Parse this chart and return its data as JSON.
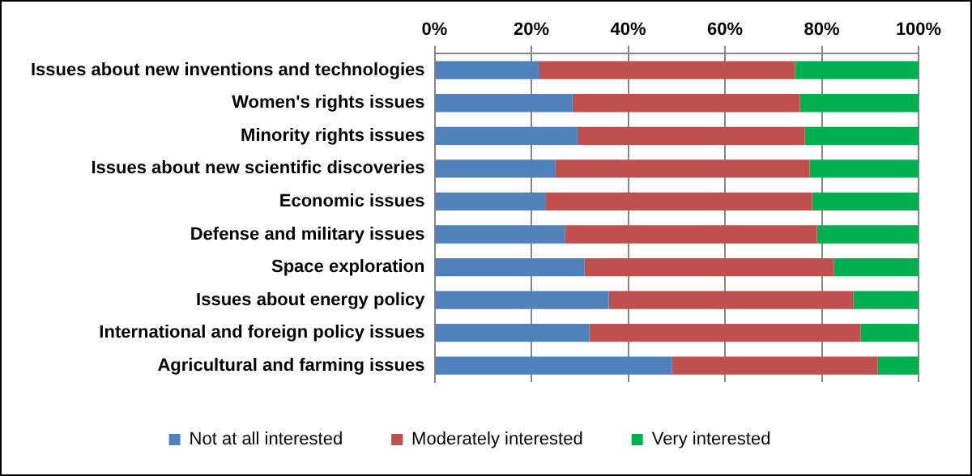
{
  "chart_data": {
    "type": "bar",
    "orientation": "horizontal",
    "stacked": true,
    "categories": [
      "Issues about new inventions and technologies",
      "Women's rights issues",
      "Minority rights issues",
      "Issues about new scientific discoveries",
      "Economic issues",
      "Defense and military issues",
      "Space exploration",
      "Issues about energy policy",
      "International and foreign policy issues",
      "Agricultural and farming issues"
    ],
    "series": [
      {
        "name": "Not at all interested",
        "color": "#4f81bd",
        "values": [
          21.5,
          28.5,
          29.5,
          25,
          23,
          27,
          31,
          36,
          32,
          49
        ]
      },
      {
        "name": "Moderately interested",
        "color": "#c0504d",
        "values": [
          53,
          47,
          47,
          52.5,
          55,
          52,
          51.5,
          50.5,
          56,
          42.5
        ]
      },
      {
        "name": "Very interested",
        "color": "#00b050",
        "values": [
          25.5,
          24.5,
          23.5,
          22.5,
          22,
          21,
          17.5,
          13.5,
          12,
          8.5
        ]
      }
    ],
    "xlim": [
      0,
      100
    ],
    "xticks": [
      {
        "value": 0,
        "label": "0%"
      },
      {
        "value": 20,
        "label": "20%"
      },
      {
        "value": 40,
        "label": "40%"
      },
      {
        "value": 60,
        "label": "60%"
      },
      {
        "value": 80,
        "label": "80%"
      },
      {
        "value": 100,
        "label": "100%"
      }
    ],
    "grid": "x",
    "legend": "bottom"
  }
}
